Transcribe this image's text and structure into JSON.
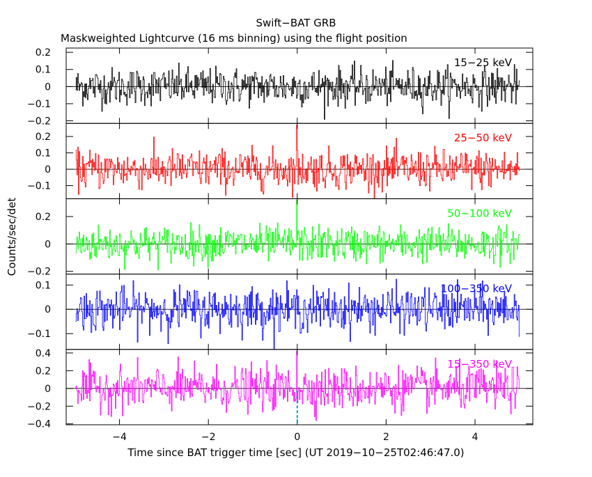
{
  "header": {
    "title": "Swift−BAT GRB",
    "subtitle": "Maskweighted Lightcurve (16 ms binning) using the flight position"
  },
  "axes": {
    "xlabel": "Time since BAT trigger time [sec] (UT 2019−10−25T02:46:47.0)",
    "ylabel": "Counts/sec/det"
  },
  "colors": {
    "axis": "#000000",
    "trigger_marker": "#00a0c0"
  },
  "chart_data": {
    "type": "line",
    "shared_x_axis": true,
    "xlim": [
      -5.2,
      5.3
    ],
    "x_tick_values": [
      -4,
      -2,
      0,
      2,
      4
    ],
    "x_tick_labels": [
      "−4",
      "−2",
      "0",
      "2",
      "4"
    ],
    "x": {
      "start": -4.984,
      "step": 0.016,
      "count": 625
    },
    "trigger_time": 0,
    "panels": [
      {
        "name": "15−25 keV",
        "color": "#000000",
        "ylim": [
          -0.215,
          0.225
        ],
        "y_tick_values": [
          -0.2,
          -0.1,
          0,
          0.1,
          0.2
        ],
        "y_tick_labels": [
          "−0.2",
          "−0.1",
          "0",
          "0.1",
          "0.2"
        ],
        "noise_sigma": 0.055,
        "spike_value": null
      },
      {
        "name": "25−50 keV",
        "color": "#ff0000",
        "ylim": [
          -0.18,
          0.28
        ],
        "y_tick_values": [
          -0.1,
          0,
          0.1,
          0.2
        ],
        "y_tick_labels": [
          "−0.1",
          "0",
          "0.1",
          "0.2"
        ],
        "noise_sigma": 0.06,
        "spike_value": 0.27
      },
      {
        "name": "50−100 keV",
        "color": "#00ff00",
        "ylim": [
          -0.22,
          0.33
        ],
        "y_tick_values": [
          -0.2,
          0,
          0.2
        ],
        "y_tick_labels": [
          "−0.2",
          "0",
          "0.2"
        ],
        "noise_sigma": 0.065,
        "spike_value": 0.32
      },
      {
        "name": "100−350 keV",
        "color": "#0000ff",
        "ylim": [
          -0.165,
          0.145
        ],
        "y_tick_values": [
          -0.1,
          0,
          0.1
        ],
        "y_tick_labels": [
          "−0.1",
          "0",
          "0.1"
        ],
        "noise_sigma": 0.045,
        "spike_value": null
      },
      {
        "name": "15−350 keV",
        "color": "#ff00ff",
        "ylim": [
          -0.41,
          0.44
        ],
        "y_tick_values": [
          -0.4,
          -0.2,
          0,
          0.2,
          0.4
        ],
        "y_tick_labels": [
          "−0.4",
          "−0.2",
          "0",
          "0.2",
          "0.4"
        ],
        "noise_sigma": 0.12,
        "spike_value": 0.42
      }
    ]
  }
}
